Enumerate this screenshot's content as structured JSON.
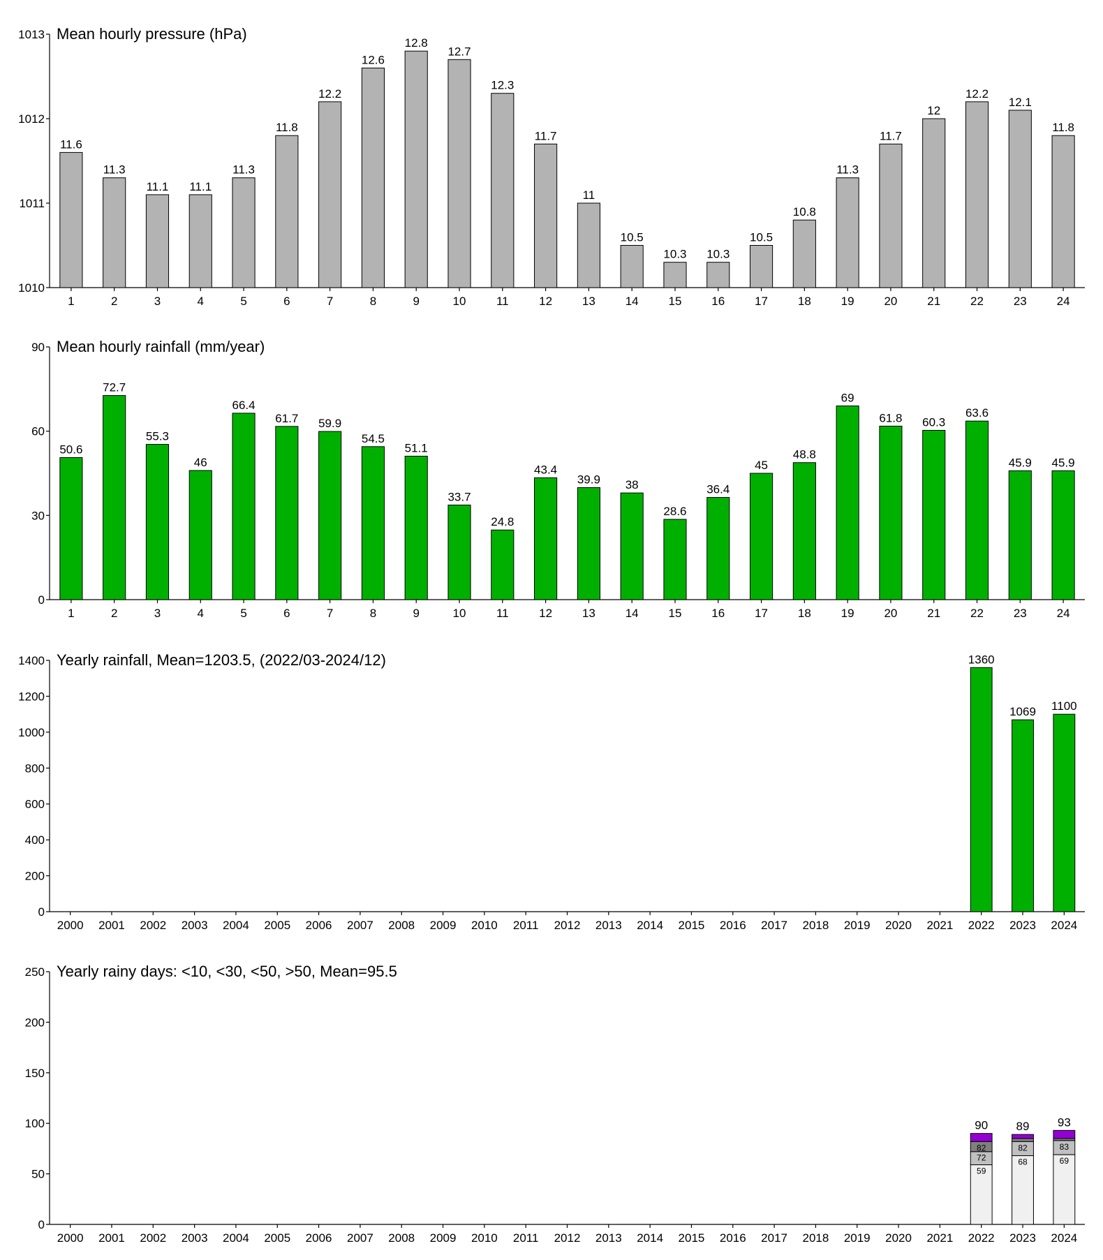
{
  "chart_data": [
    {
      "type": "bar",
      "title": "Mean hourly pressure (hPa)",
      "color": "#b3b3b3",
      "categories": [
        "1",
        "2",
        "3",
        "4",
        "5",
        "6",
        "7",
        "8",
        "9",
        "10",
        "11",
        "12",
        "13",
        "14",
        "15",
        "16",
        "17",
        "18",
        "19",
        "20",
        "21",
        "22",
        "23",
        "24"
      ],
      "values": [
        1011.6,
        1011.3,
        1011.1,
        1011.1,
        1011.3,
        1011.8,
        1012.2,
        1012.6,
        1012.8,
        1012.7,
        1012.3,
        1011.7,
        1011,
        1010.5,
        1010.3,
        1010.3,
        1010.5,
        1010.8,
        1011.3,
        1011.7,
        1012,
        1012.2,
        1012.1,
        1011.8
      ],
      "value_labels": [
        "11.6",
        "11.3",
        "11.1",
        "11.1",
        "11.3",
        "11.8",
        "12.2",
        "12.6",
        "12.8",
        "12.7",
        "12.3",
        "11.7",
        "11",
        "10.5",
        "10.3",
        "10.3",
        "10.5",
        "10.8",
        "11.3",
        "11.7",
        "12",
        "12.2",
        "12.1",
        "11.8"
      ],
      "ylim": [
        1010,
        1013
      ],
      "yticks": [
        1010,
        1011,
        1012,
        1013
      ]
    },
    {
      "type": "bar",
      "title": "Mean hourly rainfall (mm/year)",
      "color": "#00b000",
      "categories": [
        "1",
        "2",
        "3",
        "4",
        "5",
        "6",
        "7",
        "8",
        "9",
        "10",
        "11",
        "12",
        "13",
        "14",
        "15",
        "16",
        "17",
        "18",
        "19",
        "20",
        "21",
        "22",
        "23",
        "24"
      ],
      "values": [
        50.6,
        72.7,
        55.3,
        46,
        66.4,
        61.7,
        59.9,
        54.5,
        51.1,
        33.7,
        24.8,
        43.4,
        39.9,
        38,
        28.6,
        36.4,
        45,
        48.8,
        69,
        61.8,
        60.3,
        63.6,
        45.9,
        45.9
      ],
      "ylim": [
        0,
        90
      ],
      "yticks": [
        0,
        30,
        60,
        90
      ]
    },
    {
      "type": "bar",
      "title": "Yearly rainfall, Mean=1203.5, (2022/03-2024/12)",
      "color": "#00b000",
      "categories": [
        "2000",
        "2001",
        "2002",
        "2003",
        "2004",
        "2005",
        "2006",
        "2007",
        "2008",
        "2009",
        "2010",
        "2011",
        "2012",
        "2013",
        "2014",
        "2015",
        "2016",
        "2017",
        "2018",
        "2019",
        "2020",
        "2021",
        "2022",
        "2023",
        "2024"
      ],
      "values": [
        null,
        null,
        null,
        null,
        null,
        null,
        null,
        null,
        null,
        null,
        null,
        null,
        null,
        null,
        null,
        null,
        null,
        null,
        null,
        null,
        null,
        null,
        1360,
        1069,
        1100
      ],
      "ylim": [
        0,
        1400
      ],
      "yticks": [
        0,
        200,
        400,
        600,
        800,
        1000,
        1200,
        1400
      ]
    },
    {
      "type": "stacked_bar",
      "title": "Yearly rainy days: <10, <30, <50, >50, Mean=95.5",
      "categories": [
        "2000",
        "2001",
        "2002",
        "2003",
        "2004",
        "2005",
        "2006",
        "2007",
        "2008",
        "2009",
        "2010",
        "2011",
        "2012",
        "2013",
        "2014",
        "2015",
        "2016",
        "2017",
        "2018",
        "2019",
        "2020",
        "2021",
        "2022",
        "2023",
        "2024"
      ],
      "series": [
        {
          "color": "#f0f0f0",
          "values": [
            null,
            null,
            null,
            null,
            null,
            null,
            null,
            null,
            null,
            null,
            null,
            null,
            null,
            null,
            null,
            null,
            null,
            null,
            null,
            null,
            null,
            null,
            59,
            68,
            69
          ],
          "cumulative_labels": [
            null,
            null,
            null,
            null,
            null,
            null,
            null,
            null,
            null,
            null,
            null,
            null,
            null,
            null,
            null,
            null,
            null,
            null,
            null,
            null,
            null,
            null,
            "59",
            "68",
            "69"
          ]
        },
        {
          "color": "#c0c0c0",
          "values": [
            null,
            null,
            null,
            null,
            null,
            null,
            null,
            null,
            null,
            null,
            null,
            null,
            null,
            null,
            null,
            null,
            null,
            null,
            null,
            null,
            null,
            null,
            13,
            14,
            14
          ],
          "cumulative_labels": [
            null,
            null,
            null,
            null,
            null,
            null,
            null,
            null,
            null,
            null,
            null,
            null,
            null,
            null,
            null,
            null,
            null,
            null,
            null,
            null,
            null,
            null,
            "72",
            "82",
            "83"
          ]
        },
        {
          "color": "#808080",
          "values": [
            null,
            null,
            null,
            null,
            null,
            null,
            null,
            null,
            null,
            null,
            null,
            null,
            null,
            null,
            null,
            null,
            null,
            null,
            null,
            null,
            null,
            null,
            10,
            3,
            2
          ],
          "cumulative_labels": [
            null,
            null,
            null,
            null,
            null,
            null,
            null,
            null,
            null,
            null,
            null,
            null,
            null,
            null,
            null,
            null,
            null,
            null,
            null,
            null,
            null,
            null,
            "82",
            null,
            null
          ]
        },
        {
          "color": "#9400d3",
          "values": [
            null,
            null,
            null,
            null,
            null,
            null,
            null,
            null,
            null,
            null,
            null,
            null,
            null,
            null,
            null,
            null,
            null,
            null,
            null,
            null,
            null,
            null,
            8,
            4,
            8
          ],
          "cumulative_labels": [
            null,
            null,
            null,
            null,
            null,
            null,
            null,
            null,
            null,
            null,
            null,
            null,
            null,
            null,
            null,
            null,
            null,
            null,
            null,
            null,
            null,
            null,
            "90",
            "89",
            "93"
          ]
        }
      ],
      "ylim": [
        0,
        250
      ],
      "yticks": [
        0,
        50,
        100,
        150,
        200,
        250
      ]
    }
  ]
}
